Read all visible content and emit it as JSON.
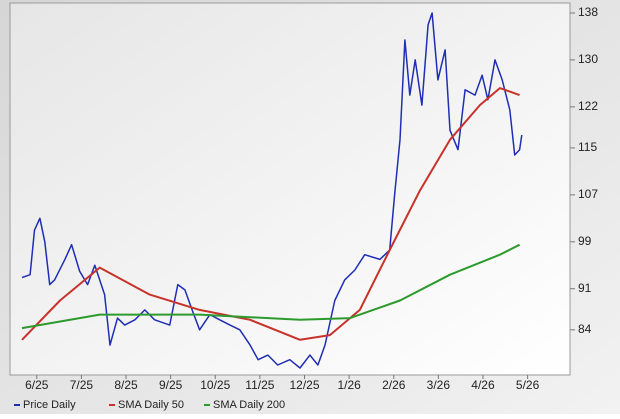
{
  "chart_data": {
    "type": "line",
    "xlim": [
      -0.6,
      11.95
    ],
    "ylim": [
      76.3,
      139.7
    ],
    "xticks": [
      {
        "value": 0,
        "label": "6/25"
      },
      {
        "value": 1,
        "label": "7/25"
      },
      {
        "value": 2,
        "label": "8/25"
      },
      {
        "value": 3,
        "label": "9/25"
      },
      {
        "value": 4,
        "label": "10/25"
      },
      {
        "value": 5,
        "label": "11/25"
      },
      {
        "value": 6,
        "label": "12/25"
      },
      {
        "value": 7,
        "label": "1/26"
      },
      {
        "value": 8,
        "label": "2/26"
      },
      {
        "value": 9,
        "label": "3/26"
      },
      {
        "value": 10,
        "label": "4/26"
      },
      {
        "value": 11,
        "label": "5/26"
      }
    ],
    "yticks": [
      84,
      91,
      99,
      107,
      115,
      122,
      130,
      138
    ],
    "series": [
      {
        "name": "Price Daily",
        "color": "#1f2eb3",
        "x": [
          -0.33,
          -0.15,
          -0.05,
          0.07,
          0.18,
          0.29,
          0.4,
          0.63,
          0.78,
          0.96,
          1.14,
          1.3,
          1.41,
          1.52,
          1.64,
          1.81,
          1.97,
          2.2,
          2.42,
          2.64,
          2.98,
          3.16,
          3.32,
          3.48,
          3.65,
          3.88,
          4.1,
          4.33,
          4.55,
          4.78,
          4.96,
          5.18,
          5.4,
          5.67,
          5.9,
          6.12,
          6.3,
          6.46,
          6.68,
          6.9,
          7.13,
          7.35,
          7.69,
          7.91,
          8.02,
          8.14,
          8.25,
          8.36,
          8.48,
          8.63,
          8.77,
          8.86,
          8.99,
          9.15,
          9.26,
          9.44,
          9.6,
          9.82,
          9.98,
          10.11,
          10.27,
          10.43,
          10.6,
          10.71,
          10.82,
          10.87
        ],
        "values": [
          92.9,
          93.4,
          101,
          103,
          99,
          91.7,
          92.5,
          96,
          98.5,
          94,
          91.7,
          95,
          92.5,
          90,
          81.4,
          86,
          84.8,
          85.7,
          87.4,
          85.7,
          84.8,
          91.7,
          90.8,
          87.4,
          84,
          86.6,
          85.7,
          84.8,
          84,
          81.4,
          78.9,
          79.7,
          78,
          78.9,
          77.5,
          79.7,
          78,
          81.4,
          89,
          92.5,
          94.2,
          96.8,
          96,
          97.6,
          107,
          116.4,
          133.4,
          124,
          130,
          122.3,
          136,
          138,
          126.6,
          131.7,
          118,
          114.7,
          124.9,
          124,
          127.4,
          123.2,
          130,
          126.6,
          121.5,
          113.8,
          114.7,
          117.2
        ]
      },
      {
        "name": "SMA Daily 50",
        "color": "#c8322a",
        "x": [
          -0.33,
          0.52,
          1.41,
          2.53,
          3.65,
          4.78,
          5.9,
          6.57,
          7.24,
          7.91,
          8.59,
          9.26,
          9.93,
          10.38,
          10.82
        ],
        "values": [
          82.3,
          89,
          94.6,
          90,
          87.4,
          85.7,
          82.3,
          83.1,
          87.4,
          97.6,
          107.8,
          116.4,
          122.3,
          125.2,
          124
        ]
      },
      {
        "name": "SMA Daily 200",
        "color": "#2c9a2c",
        "x": [
          -0.33,
          1.41,
          3.65,
          5.9,
          7.02,
          8.14,
          9.26,
          10.38,
          10.82
        ],
        "values": [
          84.3,
          86.6,
          86.6,
          85.7,
          86,
          89,
          93.4,
          96.8,
          98.5
        ]
      }
    ]
  }
}
